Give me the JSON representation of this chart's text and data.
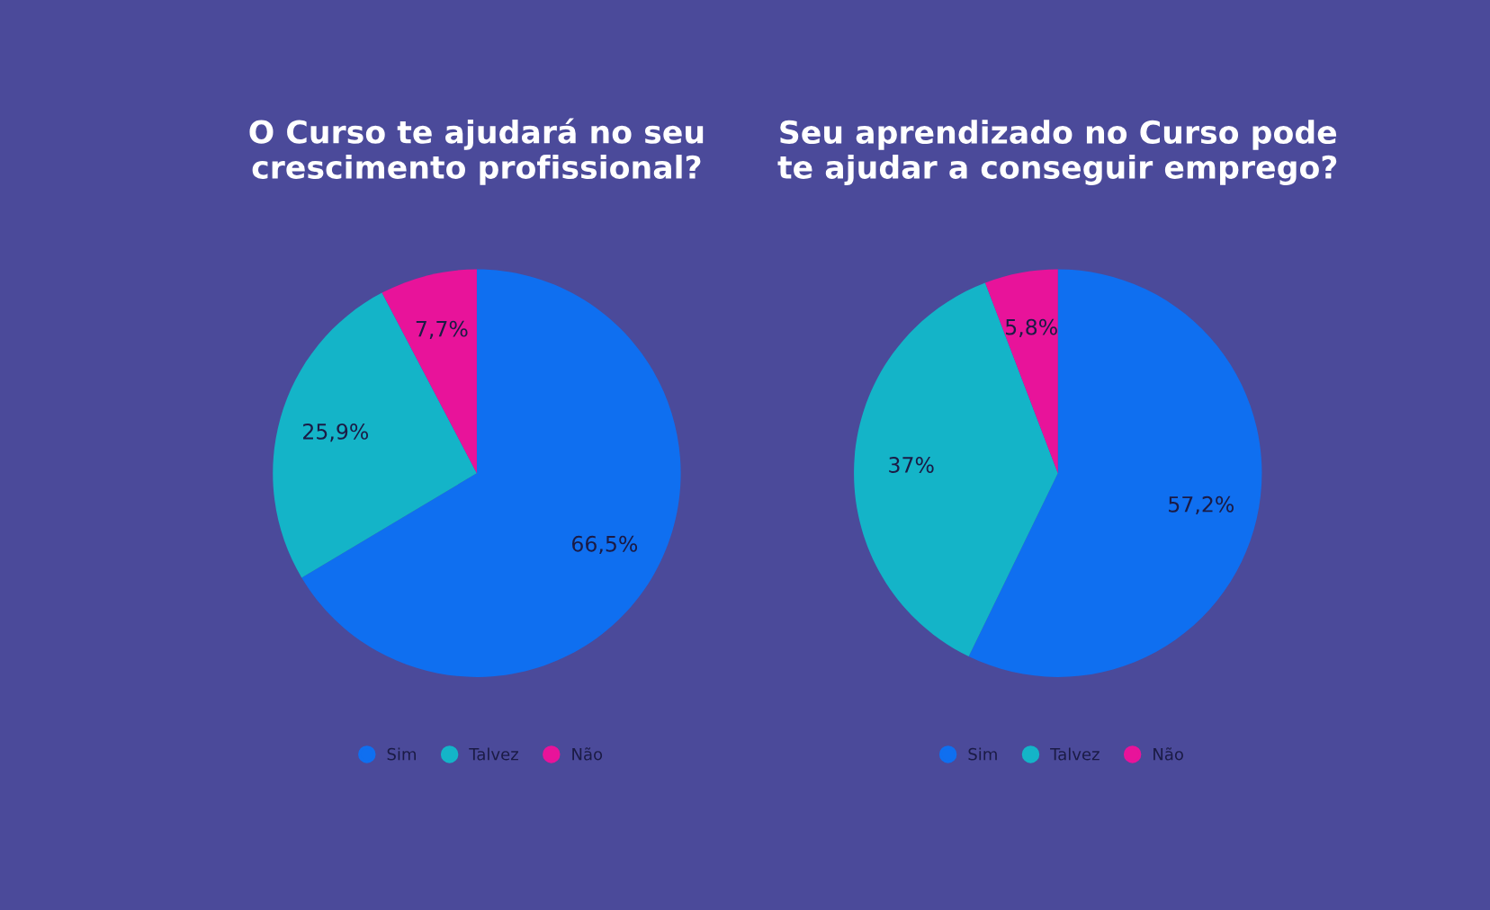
{
  "chart_data": [
    {
      "type": "pie",
      "title": "O Curso te ajudará no seu\ncrescimento profissional?",
      "categories": [
        "Sim",
        "Talvez",
        "Não"
      ],
      "values": [
        66.5,
        25.9,
        7.7
      ],
      "value_labels": [
        "66,5%",
        "25,9%",
        "7,7%"
      ],
      "colors": [
        "#0f6ff0",
        "#14b4c8",
        "#e8139a"
      ],
      "legend": "bottom"
    },
    {
      "type": "pie",
      "title": "Seu aprendizado no Curso pode\nte ajudar a conseguir emprego?",
      "categories": [
        "Sim",
        "Talvez",
        "Não"
      ],
      "values": [
        57.2,
        37,
        5.8
      ],
      "value_labels": [
        "57,2%",
        "37%",
        "5,8%"
      ],
      "colors": [
        "#0f6ff0",
        "#14b4c8",
        "#e8139a"
      ],
      "legend": "bottom"
    }
  ]
}
